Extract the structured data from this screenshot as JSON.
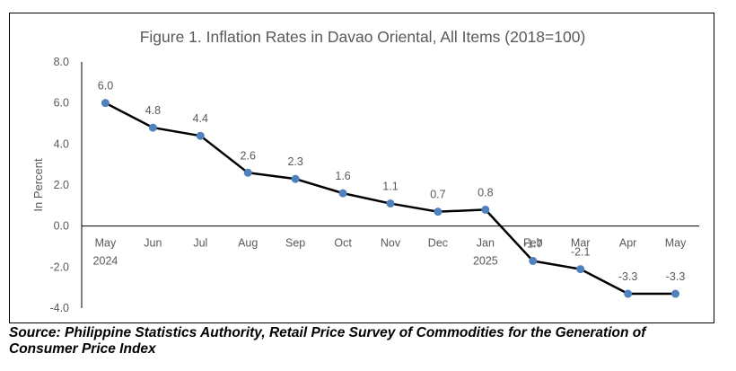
{
  "chart_data": {
    "type": "line",
    "title": "Figure 1. Inflation Rates in Davao Oriental, All Items (2018=100)",
    "xlabel": "",
    "ylabel": "In Percent",
    "categories": [
      "May",
      "Jun",
      "Jul",
      "Aug",
      "Sep",
      "Oct",
      "Nov",
      "Dec",
      "Jan",
      "Feb",
      "Mar",
      "Apr",
      "May"
    ],
    "category_years": [
      "2024",
      "",
      "",
      "",
      "",
      "",
      "",
      "",
      "2025",
      "",
      "",
      "",
      ""
    ],
    "series": [
      {
        "values": [
          6.0,
          4.8,
          4.4,
          2.6,
          2.3,
          1.6,
          1.1,
          0.7,
          0.8,
          -1.7,
          -2.1,
          -3.3,
          -3.3
        ]
      }
    ],
    "data_labels": [
      "6.0",
      "4.8",
      "4.4",
      "2.6",
      "2.3",
      "1.6",
      "1.1",
      "0.7",
      "0.8",
      "-1.7",
      "-2.1",
      "-3.3",
      "-3.3"
    ],
    "ylim": [
      -4.0,
      8.0
    ],
    "yticks": [
      "8.0",
      "6.0",
      "4.0",
      "2.0",
      "0.0",
      "-2.0",
      "-4.0"
    ],
    "ytick_values": [
      8,
      6,
      4,
      2,
      0,
      -2,
      -4
    ],
    "grid": false,
    "legend": "none",
    "colors": {
      "line": "#000000",
      "marker": "#4f81bd",
      "text": "#595959",
      "axis": "#000000"
    }
  },
  "source": "Source: Philippine Statistics Authority, Retail Price Survey of Commodities for the Generation of Consumer Price Index"
}
